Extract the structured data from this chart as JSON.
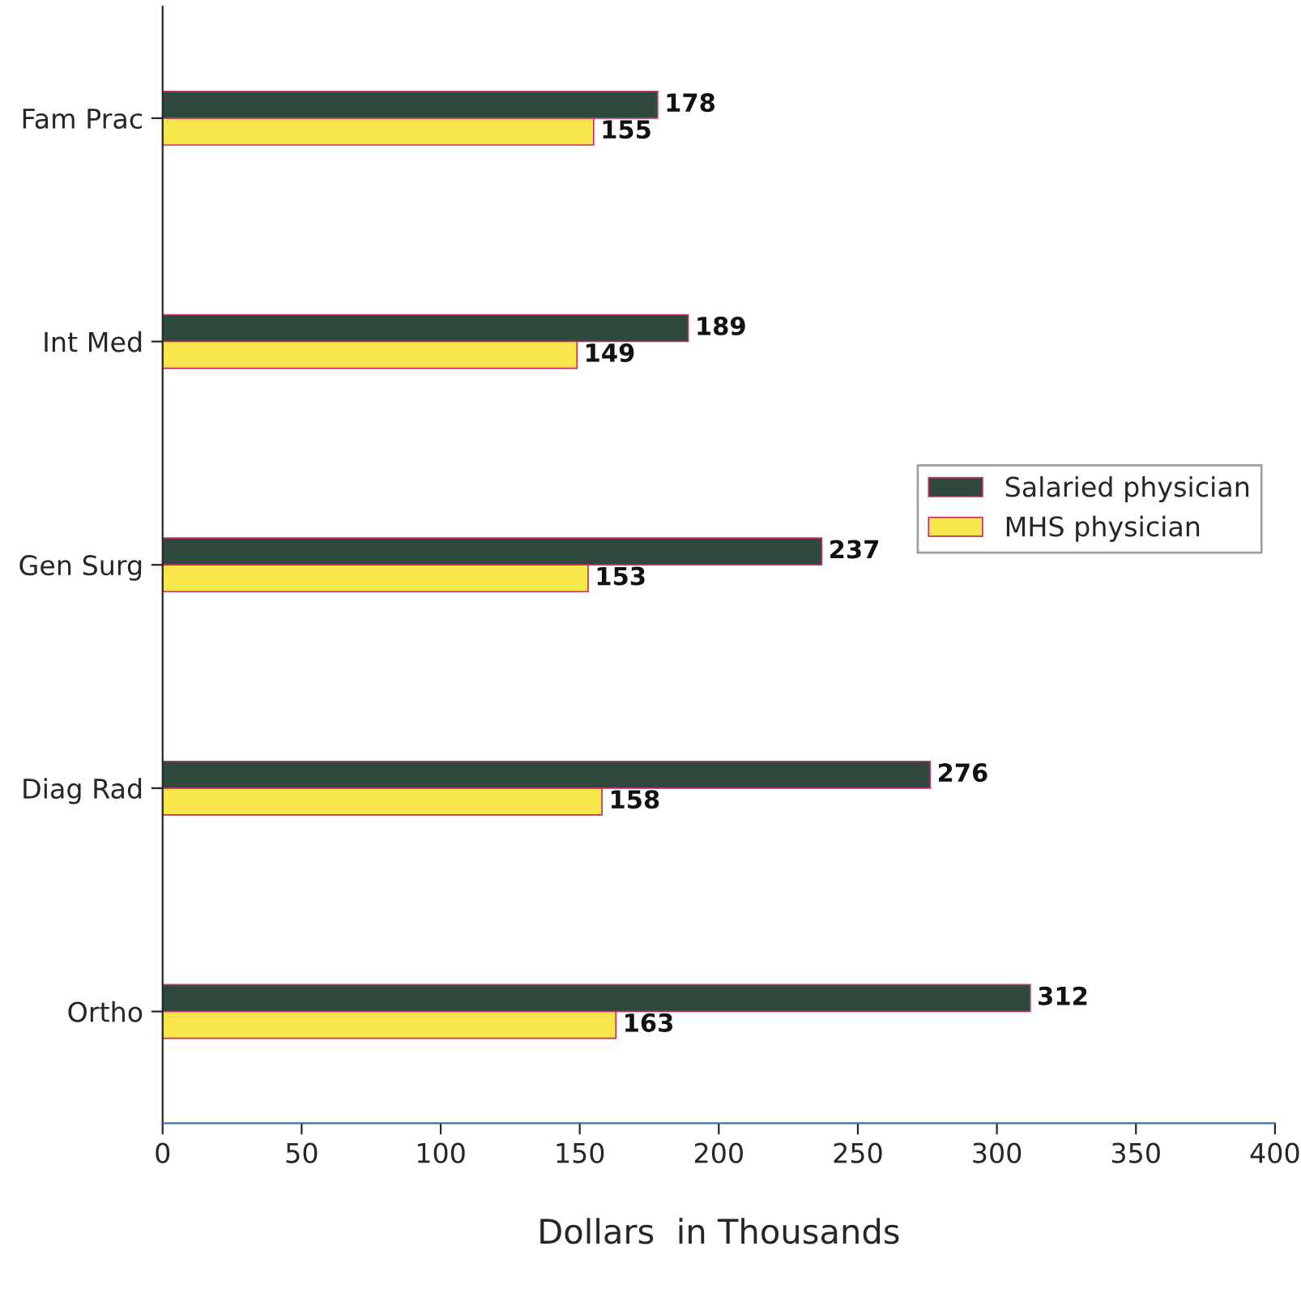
{
  "chart_data": {
    "type": "bar",
    "orientation": "horizontal",
    "xlabel": "Dollars  in Thousands",
    "categories": [
      "Fam Prac",
      "Int Med",
      "Gen Surg",
      "Diag Rad",
      "Ortho"
    ],
    "series": [
      {
        "name": "Salaried physician",
        "color": "#2f4a3c",
        "values": [
          178,
          189,
          237,
          276,
          312
        ]
      },
      {
        "name": "MHS physician",
        "color": "#f7e54b",
        "values": [
          155,
          149,
          153,
          158,
          163
        ]
      }
    ],
    "xlim": [
      0,
      400
    ],
    "xticks": [
      0,
      50,
      100,
      150,
      200,
      250,
      300,
      350,
      400
    ],
    "data_labels": true,
    "grid": false,
    "legend": "right"
  }
}
